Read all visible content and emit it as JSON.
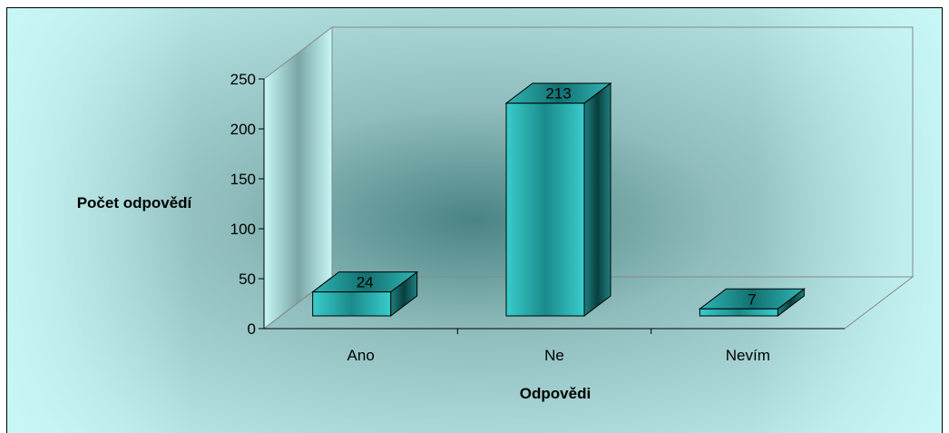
{
  "chart_data": {
    "type": "bar",
    "categories": [
      "Ano",
      "Ne",
      "Nevím"
    ],
    "values": [
      24,
      213,
      7
    ],
    "data_labels": [
      "24",
      "213",
      "7"
    ],
    "xlabel": "Odpovědi",
    "ylabel": "Počet odpovědí",
    "ylim": [
      0,
      250
    ],
    "yticks": [
      0,
      50,
      100,
      150,
      200,
      250
    ],
    "grid": false,
    "legend": "none",
    "style": "3d-column",
    "colors": {
      "bar_front": "#33c4c4",
      "bar_top": "#2aa8a8",
      "bar_side": "#157070",
      "background": "#c8f7f7",
      "background_dark": "#4a8484",
      "border": "#000000"
    }
  }
}
